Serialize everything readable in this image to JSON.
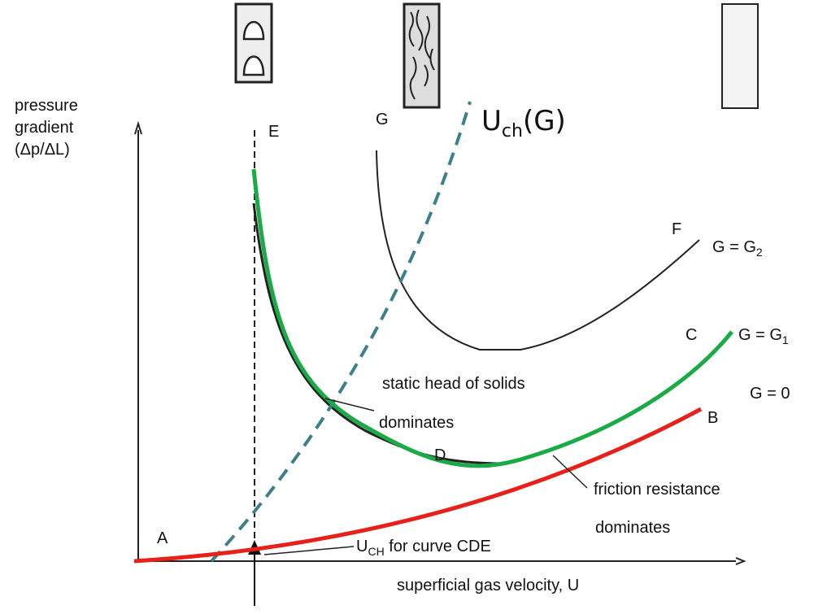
{
  "axis": {
    "y_label": [
      "pressure",
      "gradient",
      "(Δp/ΔL)"
    ],
    "x_label": "superficial gas velocity, U"
  },
  "points": {
    "A": "A",
    "B": "B",
    "C": "C",
    "D": "D",
    "E": "E",
    "F": "F",
    "G": "G"
  },
  "curves": {
    "g2": {
      "main": "G = G",
      "sub": "2"
    },
    "g1": {
      "main": "G = G",
      "sub": "1"
    },
    "g0": "G = 0",
    "uch": {
      "main": "U",
      "sub": "ch",
      "rest": "(G)"
    }
  },
  "annotations": {
    "static": [
      "static head of solids",
      "dominates"
    ],
    "friction": [
      "friction resistance",
      "dominates"
    ],
    "uch_cde": {
      "main": "U",
      "sub": "CH",
      "rest": " for curve CDE"
    }
  }
}
